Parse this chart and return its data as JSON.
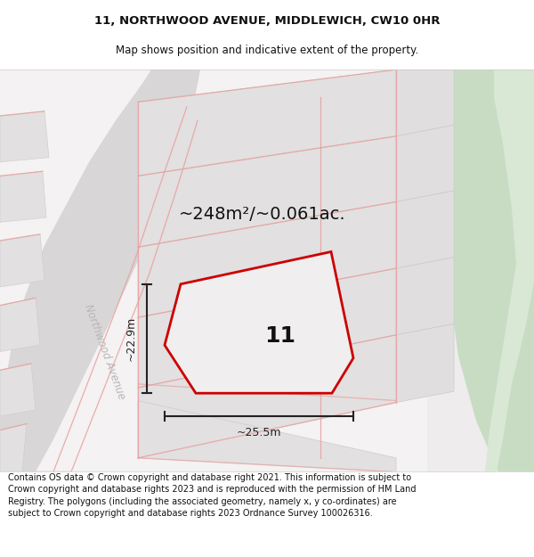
{
  "title_line1": "11, NORTHWOOD AVENUE, MIDDLEWICH, CW10 0HR",
  "title_line2": "Map shows position and indicative extent of the property.",
  "footer_text": "Contains OS data © Crown copyright and database right 2021. This information is subject to Crown copyright and database rights 2023 and is reproduced with the permission of HM Land Registry. The polygons (including the associated geometry, namely x, y co-ordinates) are subject to Crown copyright and database rights 2023 Ordnance Survey 100026316.",
  "area_label": "~248m²/~0.061ac.",
  "width_label": "~25.5m",
  "height_label": "~22.9m",
  "plot_number": "11",
  "street_label": "Northwood Avenue",
  "title_fs": 9.5,
  "sub_fs": 8.5,
  "footer_fs": 7.0,
  "area_fs": 14,
  "plot_num_fs": 18,
  "dim_fs": 9,
  "street_fs": 8.5,
  "map_bg": "#eeecec",
  "white_bg": "#f8f6f6",
  "block_gray": "#e2e0e0",
  "block_edge": "#cccccc",
  "road_fill": "#d8d6d6",
  "pink_line": "#e8a0a0",
  "green1": "#c8dcc4",
  "green2": "#d8e8d4",
  "red_plot": "#cc0000",
  "dim_col": "#222222",
  "street_col": "#b8b6b6",
  "text_col": "#111111",
  "white": "#ffffff"
}
